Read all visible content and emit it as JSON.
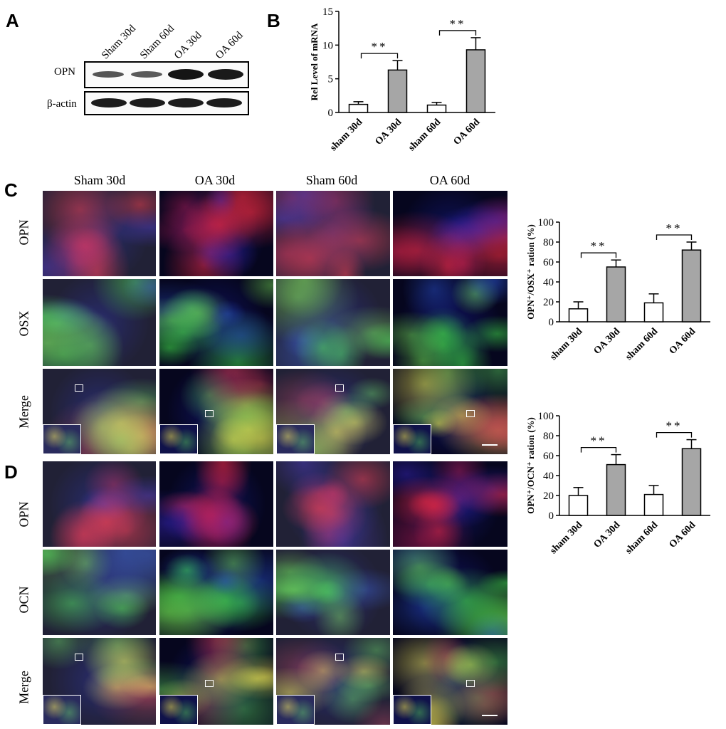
{
  "panel_letters": {
    "A": "A",
    "B": "B",
    "C": "C",
    "D": "D"
  },
  "panel_a": {
    "lanes": [
      "Sham 30d",
      "Sham 60d",
      "OA 30d",
      "OA 60d"
    ],
    "rows": [
      "OPN",
      "β-actin"
    ]
  },
  "panel_c": {
    "columns": [
      "Sham 30d",
      "OA  30d",
      "Sham 60d",
      "OA  60d"
    ],
    "rows": [
      "OPN",
      "OSX",
      "Merge"
    ]
  },
  "panel_d": {
    "rows": [
      "OPN",
      "OCN",
      "Merge"
    ]
  },
  "colors": {
    "open_bar": "#ffffff",
    "grey_bar": "#a6a6a6",
    "red_stain": "#e0283c",
    "green_stain": "#38d24a",
    "blue_stain": "#1e2ad0"
  },
  "chart_data": [
    {
      "type": "bar",
      "ylabel": "Rel Level of mRNA",
      "categories": [
        "sham 30d",
        "OA 30d",
        "sham 60d",
        "OA 60d"
      ],
      "values": [
        1.2,
        6.3,
        1.1,
        9.3
      ],
      "errors": [
        0.4,
        1.4,
        0.4,
        1.8
      ],
      "ylim": [
        0,
        15
      ],
      "yticks": [
        "0",
        "5",
        "10",
        "15"
      ],
      "significance": [
        "**",
        "**"
      ]
    },
    {
      "type": "bar",
      "ylabel": "OPN⁺/OSX⁺ ration (%)",
      "categories": [
        "sham 30d",
        "OA 30d",
        "sham 60d",
        "OA 60d"
      ],
      "values": [
        13,
        55,
        19,
        72
      ],
      "errors": [
        7,
        7,
        9,
        8
      ],
      "ylim": [
        0,
        100
      ],
      "yticks": [
        "0",
        "20",
        "40",
        "60",
        "80",
        "100"
      ],
      "significance": [
        "**",
        "**"
      ]
    },
    {
      "type": "bar",
      "ylabel": "OPN⁺/OCN⁺ ration (%)",
      "categories": [
        "sham 30d",
        "OA 30d",
        "sham 60d",
        "OA 60d"
      ],
      "values": [
        20,
        51,
        21,
        67
      ],
      "errors": [
        8,
        10,
        9,
        9
      ],
      "ylim": [
        0,
        100
      ],
      "yticks": [
        "0",
        "20",
        "40",
        "60",
        "80",
        "100"
      ],
      "significance": [
        "**",
        "**"
      ]
    }
  ]
}
